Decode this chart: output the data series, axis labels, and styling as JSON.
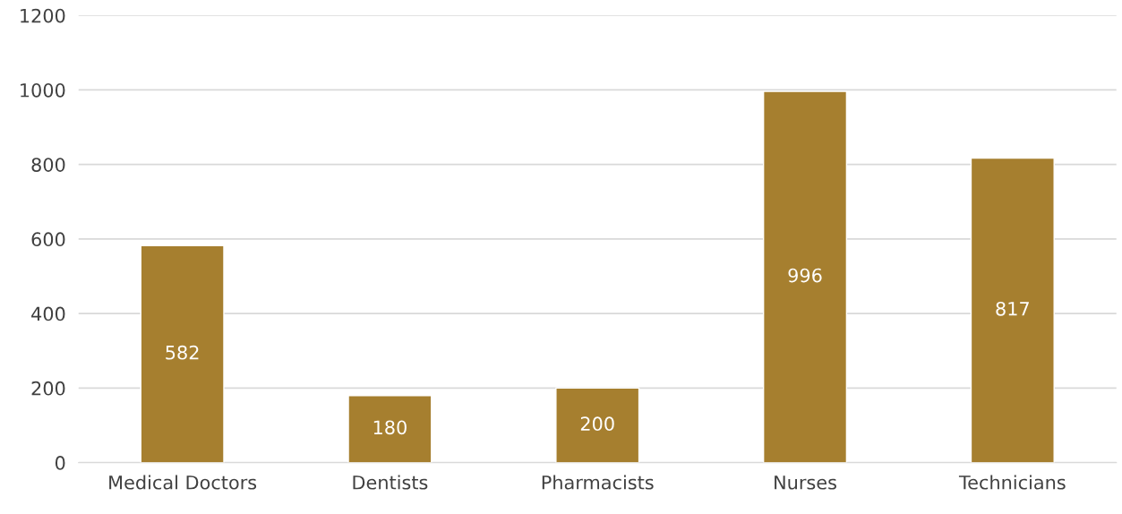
{
  "chart_data": {
    "type": "bar",
    "categories": [
      "Medical Doctors",
      "Dentists",
      "Pharmacists",
      "Nurses",
      "Technicians"
    ],
    "values": [
      582,
      180,
      200,
      996,
      817
    ],
    "color": "#a67f2f",
    "ylim": [
      0,
      1200
    ],
    "yticks": [
      0,
      200,
      400,
      600,
      800,
      1000,
      1200
    ],
    "grid": "y",
    "data_labels": true
  }
}
